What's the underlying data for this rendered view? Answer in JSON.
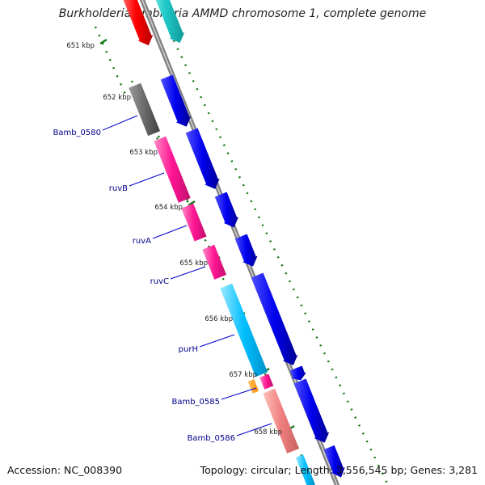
{
  "title": "Burkholderia ambifaria AMMD chromosome 1, complete genome",
  "footer": {
    "accession": "Accession: NC_008390",
    "topology": "Topology: circular; Length: 3,556,545 bp; Genes: 3,281"
  },
  "colors": {
    "backbone": "#808080",
    "forward_cds": "#0000ee",
    "gc_dots": "#1a7a1a",
    "label_text": "#00008b"
  },
  "ticks": [
    "651 kbp",
    "652 kbp",
    "653 kbp",
    "654 kbp",
    "655 kbp",
    "656 kbp",
    "657 kbp",
    "658 kbp"
  ],
  "genes": [
    {
      "label": "Bamb_0580",
      "color": "#6b6b6b"
    },
    {
      "label": "ruvB",
      "color": "#ff1493"
    },
    {
      "label": "ruvA",
      "color": "#ff1493"
    },
    {
      "label": "ruvC",
      "color": "#ff1493"
    },
    {
      "label": "purH",
      "color": "#00bfff"
    },
    {
      "label": "Bamb_0585",
      "color": "#ff1493"
    },
    {
      "label": "Bamb_0586",
      "color": "#f08080"
    }
  ]
}
